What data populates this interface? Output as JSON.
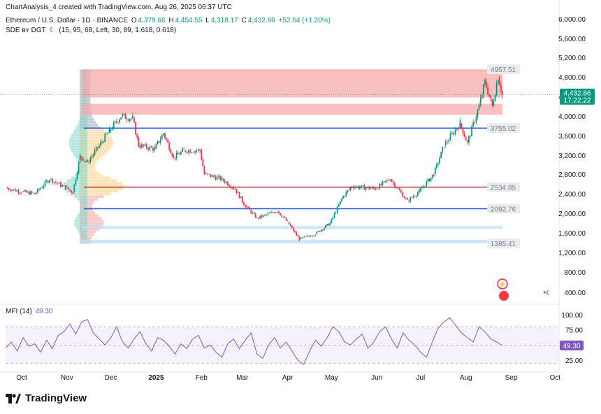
{
  "header": {
    "credit": "ChartAnalysis_4 created with TradingView.com, Aug 26, 2025 06:37 UTC",
    "symbol": "Ethereum / U.S. Dollar · 1D · BINANCE",
    "o_label": "O",
    "o_value": "4,379.66",
    "h_label": "H",
    "h_value": "4,454.55",
    "l_label": "L",
    "l_value": "4,318.17",
    "c_label": "C",
    "c_value": "4,432.86",
    "change": "+52.64 (+1.20%)",
    "indicator": "SDE ʙʏ DGT",
    "indicator_params": "(15, 95, 68, Left, 30, 89, 1.618, 0.618)"
  },
  "mfi": {
    "label": "MFI (14)",
    "value": "49.30"
  },
  "logo": {
    "text": "TradingView"
  },
  "colors": {
    "up": "#089981",
    "down": "#f23645",
    "accent": "#2962ff",
    "mfi": "#7e57c2"
  },
  "chart_data": {
    "type": "candlestick",
    "title": "Ethereum / U.S. Dollar · 1D · BINANCE",
    "price_axis": {
      "ticks": [
        400,
        800,
        1200,
        1600,
        2000,
        2400,
        2800,
        3200,
        3600,
        4000,
        4400,
        4800,
        5200,
        5600,
        6000
      ],
      "tick_labels": [
        "400.00",
        "800.00",
        "1,200.00",
        "1,600.00",
        "2,000.00",
        "2,400.00",
        "2,800.00",
        "3,200.00",
        "3,600.00",
        "4,000.00",
        "4,400.00",
        "4,800.00",
        "5,200.00",
        "5,600.00",
        "6,000.00"
      ],
      "ylim": [
        0,
        6200
      ]
    },
    "time_axis": {
      "labels": [
        "Oct",
        "Nov",
        "Dec",
        "2025",
        "Feb",
        "Mar",
        "Apr",
        "May",
        "Jun",
        "Jul",
        "Aug",
        "Sep",
        "Oct"
      ]
    },
    "last_price": {
      "value": "4,432.86",
      "countdown": "17:22:22"
    },
    "levels": [
      {
        "label": "4957.51",
        "value": 4957.51,
        "style": "label"
      },
      {
        "label": "3755.02",
        "value": 3755.02,
        "color": "#1e53e5"
      },
      {
        "label": "2534.85",
        "value": 2534.85,
        "color": "#b71c1c"
      },
      {
        "label": "2092.76",
        "value": 2092.76,
        "color": "#1e53e5"
      },
      {
        "label": "1385.41",
        "value": 1385.41,
        "style": "label"
      }
    ],
    "zones": [
      {
        "from": 4380,
        "to": 4957,
        "color": "#f7a8a8"
      },
      {
        "from": 4030,
        "to": 4250,
        "color": "#f7a8a8"
      },
      {
        "from": 1680,
        "to": 1740,
        "color": "#bbdefb"
      },
      {
        "from": 1385,
        "to": 1460,
        "color": "#bbdefb"
      }
    ],
    "closes": [
      {
        "date": "2024-09-20",
        "close": 2520
      },
      {
        "date": "2024-10-01",
        "close": 2440
      },
      {
        "date": "2024-10-10",
        "close": 2400
      },
      {
        "date": "2024-10-20",
        "close": 2700
      },
      {
        "date": "2024-10-31",
        "close": 2520
      },
      {
        "date": "2024-11-05",
        "close": 2430
      },
      {
        "date": "2024-11-10",
        "close": 3180
      },
      {
        "date": "2024-11-15",
        "close": 3050
      },
      {
        "date": "2024-11-22",
        "close": 3350
      },
      {
        "date": "2024-11-30",
        "close": 3700
      },
      {
        "date": "2024-12-08",
        "close": 4000
      },
      {
        "date": "2024-12-16",
        "close": 3950
      },
      {
        "date": "2024-12-20",
        "close": 3400
      },
      {
        "date": "2024-12-31",
        "close": 3330
      },
      {
        "date": "2025-01-06",
        "close": 3650
      },
      {
        "date": "2025-01-13",
        "close": 3150
      },
      {
        "date": "2025-01-20",
        "close": 3300
      },
      {
        "date": "2025-01-31",
        "close": 3300
      },
      {
        "date": "2025-02-03",
        "close": 2800
      },
      {
        "date": "2025-02-15",
        "close": 2700
      },
      {
        "date": "2025-02-24",
        "close": 2500
      },
      {
        "date": "2025-03-03",
        "close": 2150
      },
      {
        "date": "2025-03-11",
        "close": 1900
      },
      {
        "date": "2025-03-25",
        "close": 2050
      },
      {
        "date": "2025-04-01",
        "close": 1820
      },
      {
        "date": "2025-04-09",
        "close": 1470
      },
      {
        "date": "2025-04-20",
        "close": 1580
      },
      {
        "date": "2025-04-30",
        "close": 1800
      },
      {
        "date": "2025-05-09",
        "close": 2350
      },
      {
        "date": "2025-05-15",
        "close": 2550
      },
      {
        "date": "2025-05-31",
        "close": 2500
      },
      {
        "date": "2025-06-10",
        "close": 2700
      },
      {
        "date": "2025-06-22",
        "close": 2250
      },
      {
        "date": "2025-06-30",
        "close": 2450
      },
      {
        "date": "2025-07-10",
        "close": 2800
      },
      {
        "date": "2025-07-17",
        "close": 3400
      },
      {
        "date": "2025-07-28",
        "close": 3850
      },
      {
        "date": "2025-08-02",
        "close": 3450
      },
      {
        "date": "2025-08-10",
        "close": 4200
      },
      {
        "date": "2025-08-14",
        "close": 4700
      },
      {
        "date": "2025-08-19",
        "close": 4200
      },
      {
        "date": "2025-08-23",
        "close": 4800
      },
      {
        "date": "2025-08-26",
        "close": 4432.86
      }
    ],
    "mfi": {
      "name": "MFI (14)",
      "ticks": [
        25,
        75,
        100
      ],
      "tick_labels": [
        "25.00",
        "75.00",
        "100.00"
      ],
      "last": 49.3,
      "values": [
        45,
        55,
        40,
        62,
        48,
        52,
        38,
        58,
        44,
        66,
        72,
        85,
        68,
        88,
        92,
        70,
        60,
        50,
        62,
        80,
        55,
        45,
        60,
        72,
        52,
        40,
        62,
        58,
        48,
        35,
        52,
        44,
        60,
        66,
        45,
        50,
        38,
        30,
        52,
        60,
        44,
        58,
        70,
        35,
        28,
        50,
        62,
        45,
        55,
        40,
        25,
        18,
        40,
        58,
        48,
        62,
        80,
        72,
        55,
        50,
        60,
        68,
        45,
        55,
        72,
        80,
        60,
        45,
        70,
        58,
        50,
        38,
        30,
        55,
        78,
        88,
        95,
        82,
        70,
        62,
        55,
        80,
        72,
        60,
        55,
        49
      ]
    }
  }
}
